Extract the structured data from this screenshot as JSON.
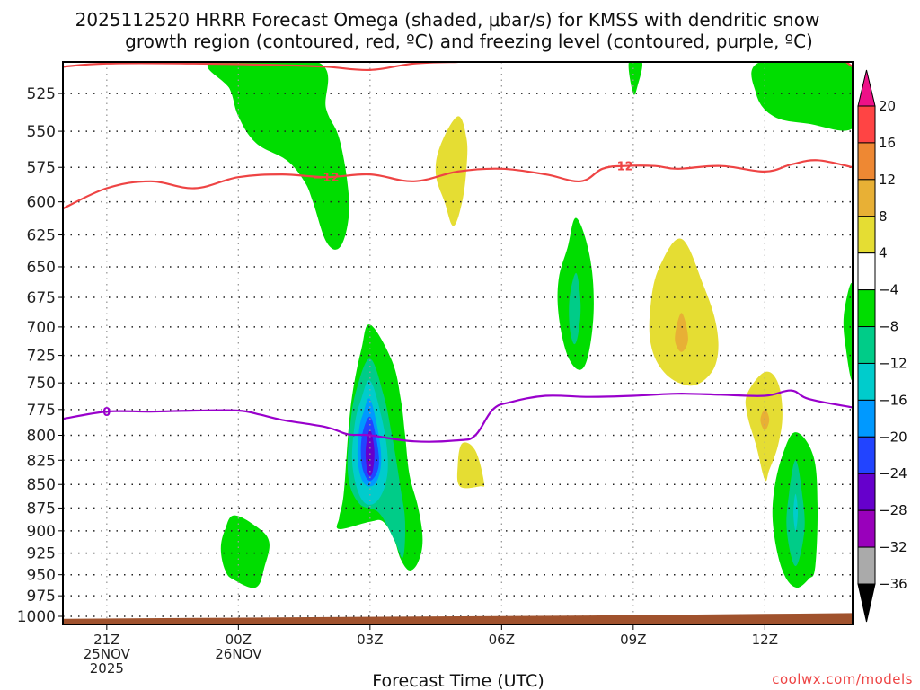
{
  "chart_data": {
    "type": "heatmap",
    "title_lines": [
      "2025112520 HRRR Forecast Omega (shaded, μbar/s) for KMSS with dendritic snow",
      "growth region (contoured, red, ºC) and freezing level (contoured, purple, ºC)"
    ],
    "xlabel": "Forecast Time (UTC)",
    "ylabel": "",
    "credit": "coolwx.com/models",
    "x_range_hours": [
      -1,
      17
    ],
    "y_range_hPa": [
      505,
      1010
    ],
    "y_ticks": [
      525,
      550,
      575,
      600,
      625,
      650,
      675,
      700,
      725,
      750,
      775,
      800,
      825,
      850,
      875,
      900,
      925,
      950,
      975,
      1000
    ],
    "x_ticks": [
      {
        "hour": 0,
        "lines": [
          "21Z",
          "25NOV",
          "2025"
        ]
      },
      {
        "hour": 3,
        "lines": [
          "00Z",
          "26NOV"
        ]
      },
      {
        "hour": 6,
        "lines": [
          "03Z"
        ]
      },
      {
        "hour": 9,
        "lines": [
          "06Z"
        ]
      },
      {
        "hour": 12,
        "lines": [
          "09Z"
        ]
      },
      {
        "hour": 15,
        "lines": [
          "12Z"
        ]
      }
    ],
    "grid": true,
    "colorbar": {
      "position": "right",
      "levels": [
        20,
        16,
        12,
        8,
        4,
        -4,
        -8,
        -12,
        -16,
        -20,
        -24,
        -28,
        -32,
        -36
      ],
      "colors": [
        "#ee1188",
        "#ff4444",
        "#ee8833",
        "#e8b035",
        "#e5dd33",
        "#ffffff",
        "#00dd00",
        "#00cc88",
        "#00cccc",
        "#0099ff",
        "#2244ff",
        "#6600cc",
        "#9900bb",
        "#aaaaaa",
        "#000000"
      ],
      "extend_top_color": "#ee1188",
      "extend_bottom_color": "#000000"
    },
    "omega_regions": [
      {
        "name": "green-top-left",
        "level": -4,
        "color": "#00dd00",
        "points": [
          [
            2.4,
            505
          ],
          [
            4.8,
            505
          ],
          [
            5.0,
            535
          ],
          [
            5.3,
            555
          ],
          [
            5.5,
            590
          ],
          [
            5.5,
            615
          ],
          [
            5.3,
            635
          ],
          [
            5.0,
            630
          ],
          [
            4.7,
            600
          ],
          [
            4.5,
            585
          ],
          [
            4.1,
            570
          ],
          [
            3.4,
            558
          ],
          [
            3.0,
            540
          ],
          [
            2.8,
            522
          ]
        ]
      },
      {
        "name": "yellow-04z",
        "level": 4,
        "color": "#e5dd33",
        "points": [
          [
            8.0,
            540
          ],
          [
            8.2,
            555
          ],
          [
            8.2,
            575
          ],
          [
            8.1,
            600
          ],
          [
            7.9,
            618
          ],
          [
            7.7,
            600
          ],
          [
            7.5,
            580
          ],
          [
            7.6,
            560
          ]
        ]
      },
      {
        "name": "green-top-09z",
        "level": -4,
        "color": "#00dd00",
        "points": [
          [
            11.9,
            505
          ],
          [
            12.2,
            505
          ],
          [
            12.1,
            520
          ],
          [
            12.0,
            525
          ]
        ]
      },
      {
        "name": "green-top-right",
        "level": -4,
        "color": "#00dd00",
        "points": [
          [
            14.9,
            505
          ],
          [
            16.8,
            505
          ],
          [
            17.0,
            520
          ],
          [
            17.0,
            548
          ],
          [
            16.0,
            545
          ],
          [
            15.2,
            540
          ],
          [
            14.8,
            525
          ]
        ]
      },
      {
        "name": "green-08z",
        "level": -4,
        "color": "#00dd00",
        "points": [
          [
            10.7,
            612
          ],
          [
            11.0,
            640
          ],
          [
            11.1,
            680
          ],
          [
            11.0,
            720
          ],
          [
            10.8,
            738
          ],
          [
            10.5,
            725
          ],
          [
            10.3,
            690
          ],
          [
            10.3,
            660
          ],
          [
            10.5,
            635
          ]
        ]
      },
      {
        "name": "teal-08z",
        "level": -8,
        "color": "#00cc88",
        "points": [
          [
            10.7,
            655
          ],
          [
            10.8,
            680
          ],
          [
            10.75,
            705
          ],
          [
            10.65,
            715
          ],
          [
            10.55,
            700
          ],
          [
            10.55,
            675
          ]
        ]
      },
      {
        "name": "yellow-10z",
        "level": 4,
        "color": "#e5dd33",
        "points": [
          [
            13.1,
            628
          ],
          [
            13.6,
            665
          ],
          [
            13.9,
            700
          ],
          [
            13.9,
            730
          ],
          [
            13.6,
            748
          ],
          [
            13.2,
            752
          ],
          [
            12.7,
            740
          ],
          [
            12.4,
            715
          ],
          [
            12.4,
            680
          ],
          [
            12.6,
            650
          ]
        ]
      },
      {
        "name": "orange-10z",
        "level": 8,
        "color": "#e8b035",
        "points": [
          [
            13.1,
            688
          ],
          [
            13.25,
            710
          ],
          [
            13.1,
            722
          ],
          [
            12.95,
            710
          ]
        ]
      },
      {
        "name": "yellow-12z",
        "level": 4,
        "color": "#e5dd33",
        "points": [
          [
            15.0,
            740
          ],
          [
            15.3,
            750
          ],
          [
            15.4,
            780
          ],
          [
            15.3,
            810
          ],
          [
            15.1,
            835
          ],
          [
            15.0,
            845
          ],
          [
            14.8,
            810
          ],
          [
            14.6,
            780
          ],
          [
            14.6,
            760
          ]
        ]
      },
      {
        "name": "orange-12z",
        "level": 8,
        "color": "#e8b035",
        "points": [
          [
            15.0,
            775
          ],
          [
            15.1,
            785
          ],
          [
            15.0,
            795
          ],
          [
            14.9,
            785
          ]
        ]
      },
      {
        "name": "yellow-05z",
        "level": 4,
        "color": "#e5dd33",
        "points": [
          [
            8.1,
            808
          ],
          [
            8.4,
            815
          ],
          [
            8.6,
            848
          ],
          [
            8.5,
            852
          ],
          [
            8.05,
            852
          ],
          [
            8.0,
            830
          ]
        ]
      },
      {
        "name": "green-03z",
        "level": -4,
        "color": "#00dd00",
        "points": [
          [
            6.0,
            698
          ],
          [
            6.5,
            730
          ],
          [
            6.7,
            765
          ],
          [
            6.8,
            800
          ],
          [
            6.9,
            840
          ],
          [
            7.1,
            875
          ],
          [
            7.2,
            910
          ],
          [
            7.1,
            935
          ],
          [
            6.9,
            945
          ],
          [
            6.7,
            932
          ],
          [
            6.55,
            910
          ],
          [
            6.3,
            890
          ],
          [
            6.0,
            890
          ],
          [
            5.3,
            898
          ],
          [
            5.3,
            885
          ],
          [
            5.4,
            860
          ],
          [
            5.5,
            800
          ],
          [
            5.6,
            760
          ],
          [
            5.8,
            720
          ]
        ]
      },
      {
        "name": "teal-03z",
        "level": -8,
        "color": "#00cc88",
        "points": [
          [
            6.0,
            728
          ],
          [
            6.3,
            760
          ],
          [
            6.5,
            800
          ],
          [
            6.7,
            855
          ],
          [
            6.8,
            890
          ],
          [
            6.75,
            930
          ],
          [
            6.55,
            910
          ],
          [
            6.2,
            880
          ],
          [
            5.75,
            870
          ],
          [
            5.5,
            840
          ],
          [
            5.55,
            790
          ],
          [
            5.7,
            755
          ]
        ]
      },
      {
        "name": "cyan-03z",
        "level": -12,
        "color": "#00cccc",
        "points": [
          [
            6.0,
            748
          ],
          [
            6.25,
            780
          ],
          [
            6.4,
            820
          ],
          [
            6.35,
            850
          ],
          [
            6.1,
            870
          ],
          [
            5.8,
            865
          ],
          [
            5.6,
            830
          ],
          [
            5.65,
            790
          ],
          [
            5.8,
            765
          ]
        ]
      },
      {
        "name": "lightblue-03z",
        "level": -16,
        "color": "#0099ff",
        "points": [
          [
            6.0,
            765
          ],
          [
            6.2,
            800
          ],
          [
            6.25,
            830
          ],
          [
            6.1,
            850
          ],
          [
            5.85,
            848
          ],
          [
            5.72,
            825
          ],
          [
            5.75,
            795
          ],
          [
            5.85,
            778
          ]
        ]
      },
      {
        "name": "blue-03z",
        "level": -20,
        "color": "#2244ff",
        "points": [
          [
            6.0,
            782
          ],
          [
            6.15,
            805
          ],
          [
            6.2,
            830
          ],
          [
            6.05,
            845
          ],
          [
            5.9,
            842
          ],
          [
            5.8,
            825
          ],
          [
            5.82,
            800
          ]
        ]
      },
      {
        "name": "purple-03z",
        "level": -24,
        "color": "#6600cc",
        "points": [
          [
            6.0,
            795
          ],
          [
            6.1,
            815
          ],
          [
            6.05,
            838
          ],
          [
            5.95,
            838
          ],
          [
            5.9,
            815
          ]
        ]
      },
      {
        "name": "green-2330z",
        "level": -4,
        "color": "#00dd00",
        "points": [
          [
            2.9,
            883
          ],
          [
            3.4,
            895
          ],
          [
            3.7,
            912
          ],
          [
            3.6,
            940
          ],
          [
            3.4,
            965
          ],
          [
            2.9,
            956
          ],
          [
            2.7,
            945
          ],
          [
            2.6,
            920
          ],
          [
            2.7,
            898
          ]
        ]
      },
      {
        "name": "green-13z",
        "level": -4,
        "color": "#00dd00",
        "points": [
          [
            15.7,
            797
          ],
          [
            16.1,
            820
          ],
          [
            16.2,
            870
          ],
          [
            16.15,
            940
          ],
          [
            16.0,
            955
          ],
          [
            15.7,
            965
          ],
          [
            15.4,
            945
          ],
          [
            15.2,
            900
          ],
          [
            15.2,
            860
          ],
          [
            15.4,
            820
          ]
        ]
      },
      {
        "name": "teal-13z",
        "level": -8,
        "color": "#00cc88",
        "points": [
          [
            15.7,
            825
          ],
          [
            15.85,
            860
          ],
          [
            15.9,
            900
          ],
          [
            15.7,
            940
          ],
          [
            15.5,
            900
          ],
          [
            15.55,
            860
          ]
        ]
      },
      {
        "name": "cyan-13z",
        "level": -12,
        "color": "#00cccc",
        "points": [
          [
            15.7,
            860
          ],
          [
            15.75,
            880
          ],
          [
            15.7,
            900
          ],
          [
            15.65,
            880
          ]
        ]
      },
      {
        "name": "green-right-edge",
        "level": -4,
        "color": "#00dd00",
        "points": [
          [
            17.0,
            665
          ],
          [
            17.0,
            745
          ],
          [
            16.85,
            720
          ],
          [
            16.8,
            690
          ]
        ]
      }
    ],
    "dgz_contours": [
      {
        "label": "-12",
        "color": "#ee4444",
        "label_at": [
          5.0,
          582
        ],
        "points": [
          [
            -1,
            605
          ],
          [
            0,
            590
          ],
          [
            1,
            585
          ],
          [
            2,
            590
          ],
          [
            3,
            582
          ],
          [
            4,
            580
          ],
          [
            5,
            582
          ],
          [
            6,
            580
          ],
          [
            7,
            585
          ],
          [
            8,
            578
          ],
          [
            9,
            576
          ],
          [
            10,
            580
          ],
          [
            10.8,
            585
          ],
          [
            11.3,
            576
          ],
          [
            11.8,
            574
          ],
          [
            12.5,
            574
          ],
          [
            13,
            576
          ],
          [
            14,
            574
          ],
          [
            15,
            578
          ],
          [
            15.6,
            573
          ],
          [
            16.2,
            570
          ],
          [
            17,
            575
          ]
        ]
      },
      {
        "label": "",
        "color": "#ee4444",
        "label_at": null,
        "points": [
          [
            -1,
            508
          ],
          [
            0,
            506
          ],
          [
            2,
            506
          ],
          [
            4,
            507
          ],
          [
            5,
            508
          ],
          [
            6,
            510
          ],
          [
            7,
            506
          ],
          [
            8,
            505
          ]
        ]
      },
      {
        "label": "",
        "color": "#ee4444",
        "label_at": null,
        "points": [
          [
            16.85,
            505
          ],
          [
            17,
            508
          ]
        ]
      }
    ],
    "freezing_level": {
      "label": "0",
      "color": "#9900cc",
      "label_at": [
        0,
        777
      ],
      "points": [
        [
          -1,
          784
        ],
        [
          0,
          777
        ],
        [
          1,
          777
        ],
        [
          2,
          776
        ],
        [
          3,
          776
        ],
        [
          3.5,
          780
        ],
        [
          4,
          785
        ],
        [
          5,
          792
        ],
        [
          5.5,
          799
        ],
        [
          6,
          800
        ],
        [
          7,
          806
        ],
        [
          8,
          805
        ],
        [
          8.4,
          800
        ],
        [
          8.8,
          775
        ],
        [
          9.2,
          768
        ],
        [
          10,
          762
        ],
        [
          11,
          763
        ],
        [
          12,
          762
        ],
        [
          13,
          760
        ],
        [
          14,
          761
        ],
        [
          15,
          762
        ],
        [
          15.6,
          757
        ],
        [
          16,
          765
        ],
        [
          17,
          773
        ]
      ]
    },
    "terrain": {
      "color": "#a0522d",
      "points": [
        [
          -1,
          1003
        ],
        [
          2,
          1002
        ],
        [
          5,
          1001
        ],
        [
          8,
          1000
        ],
        [
          11,
          999
        ],
        [
          13,
          998
        ],
        [
          15,
          997
        ],
        [
          17,
          996
        ]
      ]
    }
  }
}
